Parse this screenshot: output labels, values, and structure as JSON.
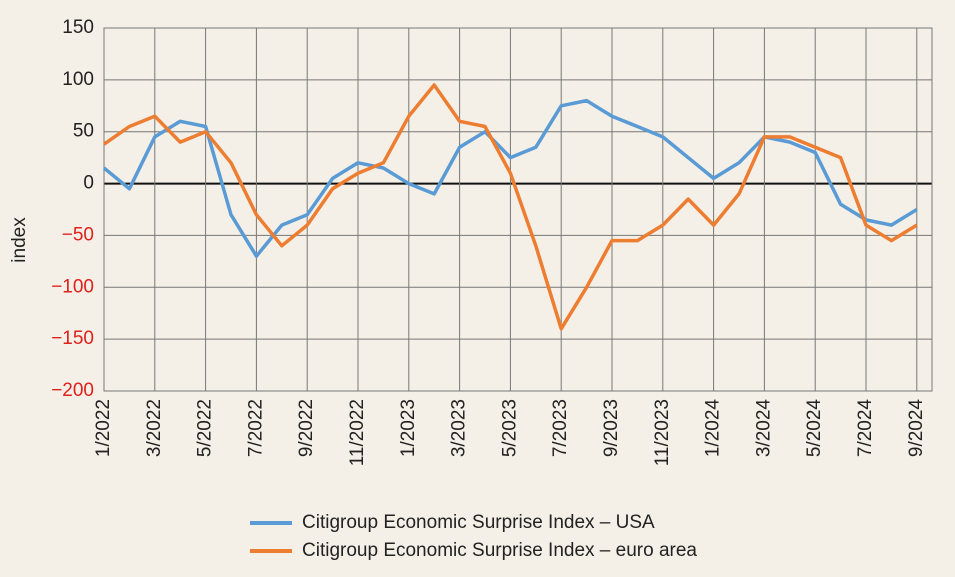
{
  "chart_data": {
    "type": "line",
    "y_label": "index",
    "x": [
      "1/2022",
      null,
      "3/2022",
      null,
      "5/2022",
      null,
      "7/2022",
      null,
      "9/2022",
      null,
      "11/2022",
      null,
      "1/2023",
      null,
      "3/2023",
      null,
      "5/2023",
      null,
      "7/2023",
      null,
      "9/2023",
      null,
      "11/2023",
      null,
      "1/2024",
      null,
      "3/2024",
      null,
      "5/2024",
      null,
      "7/2024",
      null,
      "9/2024"
    ],
    "series": [
      {
        "name": "Citigroup Economic Surprise Index – USA",
        "color": "#5b9bd5",
        "values": [
          15,
          -5,
          45,
          60,
          55,
          -30,
          -70,
          -40,
          -30,
          5,
          20,
          15,
          0,
          -10,
          35,
          50,
          25,
          35,
          75,
          80,
          65,
          55,
          45,
          25,
          5,
          20,
          45,
          40,
          30,
          -20,
          -35,
          -40,
          -25
        ]
      },
      {
        "name": "Citigroup Economic Surprise Index – euro area",
        "color": "#ed7d31",
        "values": [
          38,
          55,
          65,
          40,
          50,
          20,
          -30,
          -60,
          -40,
          -5,
          10,
          20,
          65,
          95,
          60,
          55,
          10,
          -60,
          -140,
          -100,
          -55,
          -55,
          -40,
          -15,
          -40,
          -10,
          45,
          45,
          35,
          25,
          -40,
          -55,
          -40
        ]
      }
    ],
    "ylim": [
      -200,
      150
    ],
    "yticks": [
      {
        "value": -200,
        "label": "−200"
      },
      {
        "value": -150,
        "label": "−150"
      },
      {
        "value": -100,
        "label": "−100"
      },
      {
        "value": -50,
        "label": "−50"
      },
      0,
      50,
      100,
      150
    ],
    "grid": true
  }
}
